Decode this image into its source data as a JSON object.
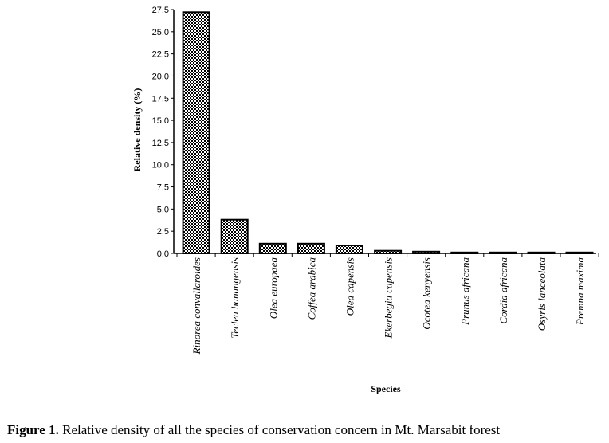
{
  "chart_data": {
    "type": "bar",
    "title": "",
    "xlabel": "Species",
    "ylabel": "Relative density (%)",
    "ylim": [
      0,
      27.5
    ],
    "yticks": [
      "0.0",
      "2.5",
      "5.0",
      "7.5",
      "10.0",
      "12.5",
      "15.0",
      "17.5",
      "20.0",
      "22.5",
      "25.0",
      "27.5"
    ],
    "categories": [
      "Rinorea convallaroides",
      "Teclea hanangensis",
      "Olea europaea",
      "Coffea arabica",
      "Olea capensis",
      "Ekerbegia capensis",
      "Ocotea kenyensis",
      "Prunus africana",
      "Cordia africana",
      "Osyris lanceolata",
      "Premna maxima"
    ],
    "values": [
      27.2,
      3.8,
      1.1,
      1.1,
      0.9,
      0.3,
      0.2,
      0.1,
      0.1,
      0.03,
      0.03
    ],
    "fill_pattern": "checkered",
    "bar_color": "#000000"
  },
  "caption": {
    "label": "Figure 1.",
    "text": " Relative density of all the species of conservation concern in Mt. Marsabit forest"
  }
}
